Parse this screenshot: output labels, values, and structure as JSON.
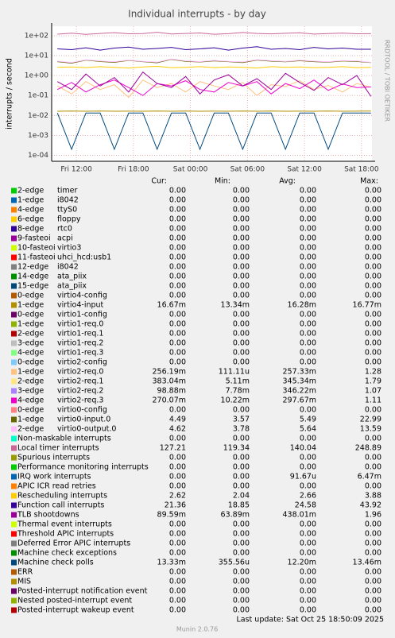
{
  "chart_data": {
    "type": "line",
    "title": "Individual interrupts - by day",
    "y_label": "interrupts / second",
    "watermark": "RRDTOOL / TOBI OETIKER",
    "log_scale": true,
    "grid": true,
    "ylim": [
      5e-05,
      300
    ],
    "yticks": [
      {
        "value": 0.0001,
        "label": "1e-04"
      },
      {
        "value": 0.001,
        "label": "1e-03"
      },
      {
        "value": 0.01,
        "label": "1e-02"
      },
      {
        "value": 0.1,
        "label": "1e-01"
      },
      {
        "value": 1,
        "label": "1e+00"
      },
      {
        "value": 10,
        "label": "1e+01"
      },
      {
        "value": 100,
        "label": "1e+02"
      }
    ],
    "xlim": [
      9.4,
      43.1
    ],
    "xticks": [
      {
        "value": 12,
        "label": "Fri 12:00"
      },
      {
        "value": 18,
        "label": "Fri 18:00"
      },
      {
        "value": 24,
        "label": "Sat 00:00"
      },
      {
        "value": 30,
        "label": "Sat 06:00"
      },
      {
        "value": 36,
        "label": "Sat 12:00"
      },
      {
        "value": 42,
        "label": "Sat 18:00"
      }
    ],
    "x": [
      10,
      11.5,
      13,
      14.5,
      16,
      17.5,
      19,
      20.5,
      22,
      23.5,
      25,
      26.5,
      28,
      29.5,
      31,
      32.5,
      34,
      35.5,
      37,
      38.5,
      40,
      41.5,
      43
    ],
    "columns": [
      "Cur:",
      "Min:",
      "Avg:",
      "Max:"
    ],
    "series": [
      {
        "name": "2-edge",
        "device": "timer",
        "color": "#00CC00",
        "cur": "0.00",
        "min": "0.00",
        "avg": "0.00",
        "max": "0.00"
      },
      {
        "name": "1-edge",
        "device": "i8042",
        "color": "#0066B3",
        "cur": "0.00",
        "min": "0.00",
        "avg": "0.00",
        "max": "0.00"
      },
      {
        "name": "4-edge",
        "device": "ttyS0",
        "color": "#FF8000",
        "cur": "0.00",
        "min": "0.00",
        "avg": "0.00",
        "max": "0.00"
      },
      {
        "name": "6-edge",
        "device": "floppy",
        "color": "#FFCC00",
        "cur": "0.00",
        "min": "0.00",
        "avg": "0.00",
        "max": "0.00"
      },
      {
        "name": "8-edge",
        "device": "rtc0",
        "color": "#330099",
        "cur": "0.00",
        "min": "0.00",
        "avg": "0.00",
        "max": "0.00"
      },
      {
        "name": "9-fasteoi",
        "device": "acpi",
        "color": "#990099",
        "cur": "0.00",
        "min": "0.00",
        "avg": "0.00",
        "max": "0.00"
      },
      {
        "name": "10-fasteoi",
        "device": "virtio3",
        "color": "#CCFF00",
        "cur": "0.00",
        "min": "0.00",
        "avg": "0.00",
        "max": "0.00"
      },
      {
        "name": "11-fasteoi",
        "device": "uhci_hcd:usb1",
        "color": "#FF0000",
        "cur": "0.00",
        "min": "0.00",
        "avg": "0.00",
        "max": "0.00"
      },
      {
        "name": "12-edge",
        "device": "i8042",
        "color": "#808080",
        "cur": "0.00",
        "min": "0.00",
        "avg": "0.00",
        "max": "0.00"
      },
      {
        "name": "14-edge",
        "device": "ata_piix",
        "color": "#008F00",
        "cur": "0.00",
        "min": "0.00",
        "avg": "0.00",
        "max": "0.00"
      },
      {
        "name": "15-edge",
        "device": "ata_piix",
        "color": "#00487D",
        "cur": "0.00",
        "min": "0.00",
        "avg": "0.00",
        "max": "0.00"
      },
      {
        "name": "0-edge",
        "device": "virtio4-config",
        "color": "#B35A00",
        "cur": "0.00",
        "min": "0.00",
        "avg": "0.00",
        "max": "0.00"
      },
      {
        "name": "1-edge",
        "device": "virtio4-input",
        "color": "#B38F00",
        "cur": "16.67m",
        "min": "13.34m",
        "avg": "16.28m",
        "max": "16.77m",
        "values": [
          0.0163,
          0.0165,
          0.0162,
          0.0166,
          0.0163,
          0.0164,
          0.0162,
          0.0165,
          0.0163,
          0.0166,
          0.0162,
          0.0164,
          0.0163,
          0.0165,
          0.0162,
          0.0166,
          0.0163,
          0.0164,
          0.0162,
          0.0165,
          0.0163,
          0.0164,
          0.0167
        ]
      },
      {
        "name": "0-edge",
        "device": "virtio1-config",
        "color": "#6B006B",
        "cur": "0.00",
        "min": "0.00",
        "avg": "0.00",
        "max": "0.00"
      },
      {
        "name": "1-edge",
        "device": "virtio1-req.0",
        "color": "#8FB300",
        "cur": "0.00",
        "min": "0.00",
        "avg": "0.00",
        "max": "0.00"
      },
      {
        "name": "2-edge",
        "device": "virtio1-req.1",
        "color": "#B30000",
        "cur": "0.00",
        "min": "0.00",
        "avg": "0.00",
        "max": "0.00"
      },
      {
        "name": "3-edge",
        "device": "virtio1-req.2",
        "color": "#BEBEBE",
        "cur": "0.00",
        "min": "0.00",
        "avg": "0.00",
        "max": "0.00"
      },
      {
        "name": "4-edge",
        "device": "virtio1-req.3",
        "color": "#80FF80",
        "cur": "0.00",
        "min": "0.00",
        "avg": "0.00",
        "max": "0.00"
      },
      {
        "name": "0-edge",
        "device": "virtio2-config",
        "color": "#80C9FF",
        "cur": "0.00",
        "min": "0.00",
        "avg": "0.00",
        "max": "0.00"
      },
      {
        "name": "1-edge",
        "device": "virtio2-req.0",
        "color": "#FFC080",
        "cur": "256.19m",
        "min": "111.11u",
        "avg": "257.33m",
        "max": "1.28",
        "values": [
          0.3,
          0.12,
          0.5,
          0.2,
          0.35,
          0.08,
          0.6,
          0.25,
          0.4,
          0.15,
          0.5,
          0.3,
          0.2,
          0.45,
          0.1,
          0.35,
          0.28,
          0.55,
          0.2,
          0.32,
          0.15,
          0.4,
          0.26
        ]
      },
      {
        "name": "2-edge",
        "device": "virtio2-req.1",
        "color": "#FFE680",
        "cur": "383.04m",
        "min": "5.11m",
        "avg": "345.34m",
        "max": "1.79"
      },
      {
        "name": "3-edge",
        "device": "virtio2-req.2",
        "color": "#AA80FF",
        "cur": "98.88m",
        "min": "7.78m",
        "avg": "346.22m",
        "max": "1.07"
      },
      {
        "name": "4-edge",
        "device": "virtio2-req.3",
        "color": "#EE00CC",
        "cur": "270.07m",
        "min": "10.22m",
        "avg": "297.67m",
        "max": "1.11",
        "values": [
          0.2,
          0.45,
          0.15,
          0.35,
          0.6,
          0.25,
          0.1,
          0.4,
          0.3,
          0.55,
          0.2,
          0.15,
          0.45,
          0.3,
          0.5,
          0.12,
          0.4,
          0.22,
          0.6,
          0.18,
          0.38,
          0.25,
          0.27
        ]
      },
      {
        "name": "0-edge",
        "device": "virtio0-config",
        "color": "#FF8080",
        "cur": "0.00",
        "min": "0.00",
        "avg": "0.00",
        "max": "0.00"
      },
      {
        "name": "1-edge",
        "device": "virtio0-input.0",
        "color": "#666600",
        "cur": "4.49",
        "min": "3.57",
        "avg": "5.49",
        "max": "22.99",
        "values": [
          5,
          4.2,
          6,
          5.1,
          4.6,
          5.8,
          5,
          4.4,
          6.5,
          5.2,
          4.8,
          5.5,
          5,
          4.5,
          6,
          5.3,
          4.9,
          5.6,
          5,
          4.7,
          5.4,
          5.1,
          4.5
        ]
      },
      {
        "name": "2-edge",
        "device": "virtio0-output.0",
        "color": "#FFBFFF",
        "cur": "4.62",
        "min": "3.78",
        "avg": "5.64",
        "max": "13.59",
        "values": [
          5.3,
          4.5,
          6.2,
          5.4,
          4.9,
          6,
          5.2,
          4.7,
          6.8,
          5.5,
          5,
          5.8,
          5.2,
          4.8,
          6.3,
          5.6,
          5.1,
          5.9,
          5.3,
          4.9,
          5.7,
          5.4,
          4.6
        ]
      },
      {
        "name": "Non-maskable interrupts",
        "color": "#00FFCC",
        "cur": "0.00",
        "min": "0.00",
        "avg": "0.00",
        "max": "0.00"
      },
      {
        "name": "Local timer interrupts",
        "color": "#CC6699",
        "cur": "127.21",
        "min": "119.34",
        "avg": "140.04",
        "max": "248.89",
        "values": [
          120,
          135,
          118,
          130,
          142,
          125,
          128,
          150,
          122,
          130,
          138,
          119,
          127,
          145,
          130,
          124,
          133,
          140,
          121,
          129,
          136,
          125,
          127
        ]
      },
      {
        "name": "Spurious interrupts",
        "color": "#999900",
        "cur": "0.00",
        "min": "0.00",
        "avg": "0.00",
        "max": "0.00"
      },
      {
        "name": "Performance monitoring interrupts",
        "color": "#00CC00",
        "cur": "0.00",
        "min": "0.00",
        "avg": "0.00",
        "max": "0.00"
      },
      {
        "name": "IRQ work interrupts",
        "color": "#0066B3",
        "cur": "0.00",
        "min": "0.00",
        "avg": "91.67u",
        "max": "6.47m"
      },
      {
        "name": "APIC ICR read retries",
        "color": "#FF8000",
        "cur": "0.00",
        "min": "0.00",
        "avg": "0.00",
        "max": "0.00"
      },
      {
        "name": "Rescheduling interrupts",
        "color": "#FFCC00",
        "cur": "2.62",
        "min": "2.04",
        "avg": "2.66",
        "max": "3.88",
        "values": [
          2.6,
          2.7,
          2.5,
          2.8,
          2.6,
          2.4,
          2.7,
          2.9,
          2.5,
          2.6,
          2.8,
          2.5,
          2.7,
          2.6,
          2.4,
          2.8,
          2.6,
          2.7,
          2.5,
          2.6,
          2.8,
          2.5,
          2.6
        ]
      },
      {
        "name": "Function call interrupts",
        "color": "#330099",
        "cur": "21.36",
        "min": "18.85",
        "avg": "24.58",
        "max": "43.92",
        "values": [
          22,
          20,
          25,
          19,
          24,
          27,
          21,
          23,
          26,
          20,
          22,
          25,
          19,
          24,
          28,
          21,
          23,
          20,
          26,
          22,
          24,
          21,
          21
        ]
      },
      {
        "name": "TLB shootdowns",
        "color": "#990099",
        "cur": "89.59m",
        "min": "63.89m",
        "avg": "438.01m",
        "max": "1.96",
        "values": [
          0.5,
          0.2,
          1.2,
          0.3,
          0.8,
          0.15,
          1.5,
          0.4,
          0.25,
          0.9,
          0.12,
          0.6,
          1.1,
          0.3,
          0.7,
          0.2,
          1.3,
          0.45,
          0.18,
          0.8,
          0.35,
          1.0,
          0.09
        ]
      },
      {
        "name": "Thermal event interrupts",
        "color": "#CCFF00",
        "cur": "0.00",
        "min": "0.00",
        "avg": "0.00",
        "max": "0.00"
      },
      {
        "name": "Threshold APIC interrupts",
        "color": "#FF0000",
        "cur": "0.00",
        "min": "0.00",
        "avg": "0.00",
        "max": "0.00"
      },
      {
        "name": "Deferred Error APIC interrupts",
        "color": "#808080",
        "cur": "0.00",
        "min": "0.00",
        "avg": "0.00",
        "max": "0.00"
      },
      {
        "name": "Machine check exceptions",
        "color": "#008F00",
        "cur": "0.00",
        "min": "0.00",
        "avg": "0.00",
        "max": "0.00"
      },
      {
        "name": "Machine check polls",
        "color": "#00487D",
        "cur": "13.33m",
        "min": "355.56u",
        "avg": "12.20m",
        "max": "13.46m",
        "values": [
          0.0133,
          0.0002,
          0.0133,
          0.0133,
          0.0002,
          0.0133,
          0.0133,
          0.0002,
          0.0133,
          0.0133,
          0.0002,
          0.0133,
          0.0133,
          0.0002,
          0.0133,
          0.0133,
          0.0002,
          0.0133,
          0.0133,
          0.0002,
          0.0133,
          0.0133,
          0.0133
        ]
      },
      {
        "name": "ERR",
        "color": "#B35A00",
        "cur": "0.00",
        "min": "0.00",
        "avg": "0.00",
        "max": "0.00"
      },
      {
        "name": "MIS",
        "color": "#B38F00",
        "cur": "0.00",
        "min": "0.00",
        "avg": "0.00",
        "max": "0.00"
      },
      {
        "name": "Posted-interrupt notification event",
        "color": "#6B006B",
        "cur": "0.00",
        "min": "0.00",
        "avg": "0.00",
        "max": "0.00"
      },
      {
        "name": "Nested posted-interrupt event",
        "color": "#8FB300",
        "cur": "0.00",
        "min": "0.00",
        "avg": "0.00",
        "max": "0.00"
      },
      {
        "name": "Posted-interrupt wakeup event",
        "color": "#B30000",
        "cur": "0.00",
        "min": "0.00",
        "avg": "0.00",
        "max": "0.00"
      }
    ],
    "last_update": "Last update: Sat Oct 25 18:50:09 2025",
    "footer": "Munin 2.0.76"
  }
}
